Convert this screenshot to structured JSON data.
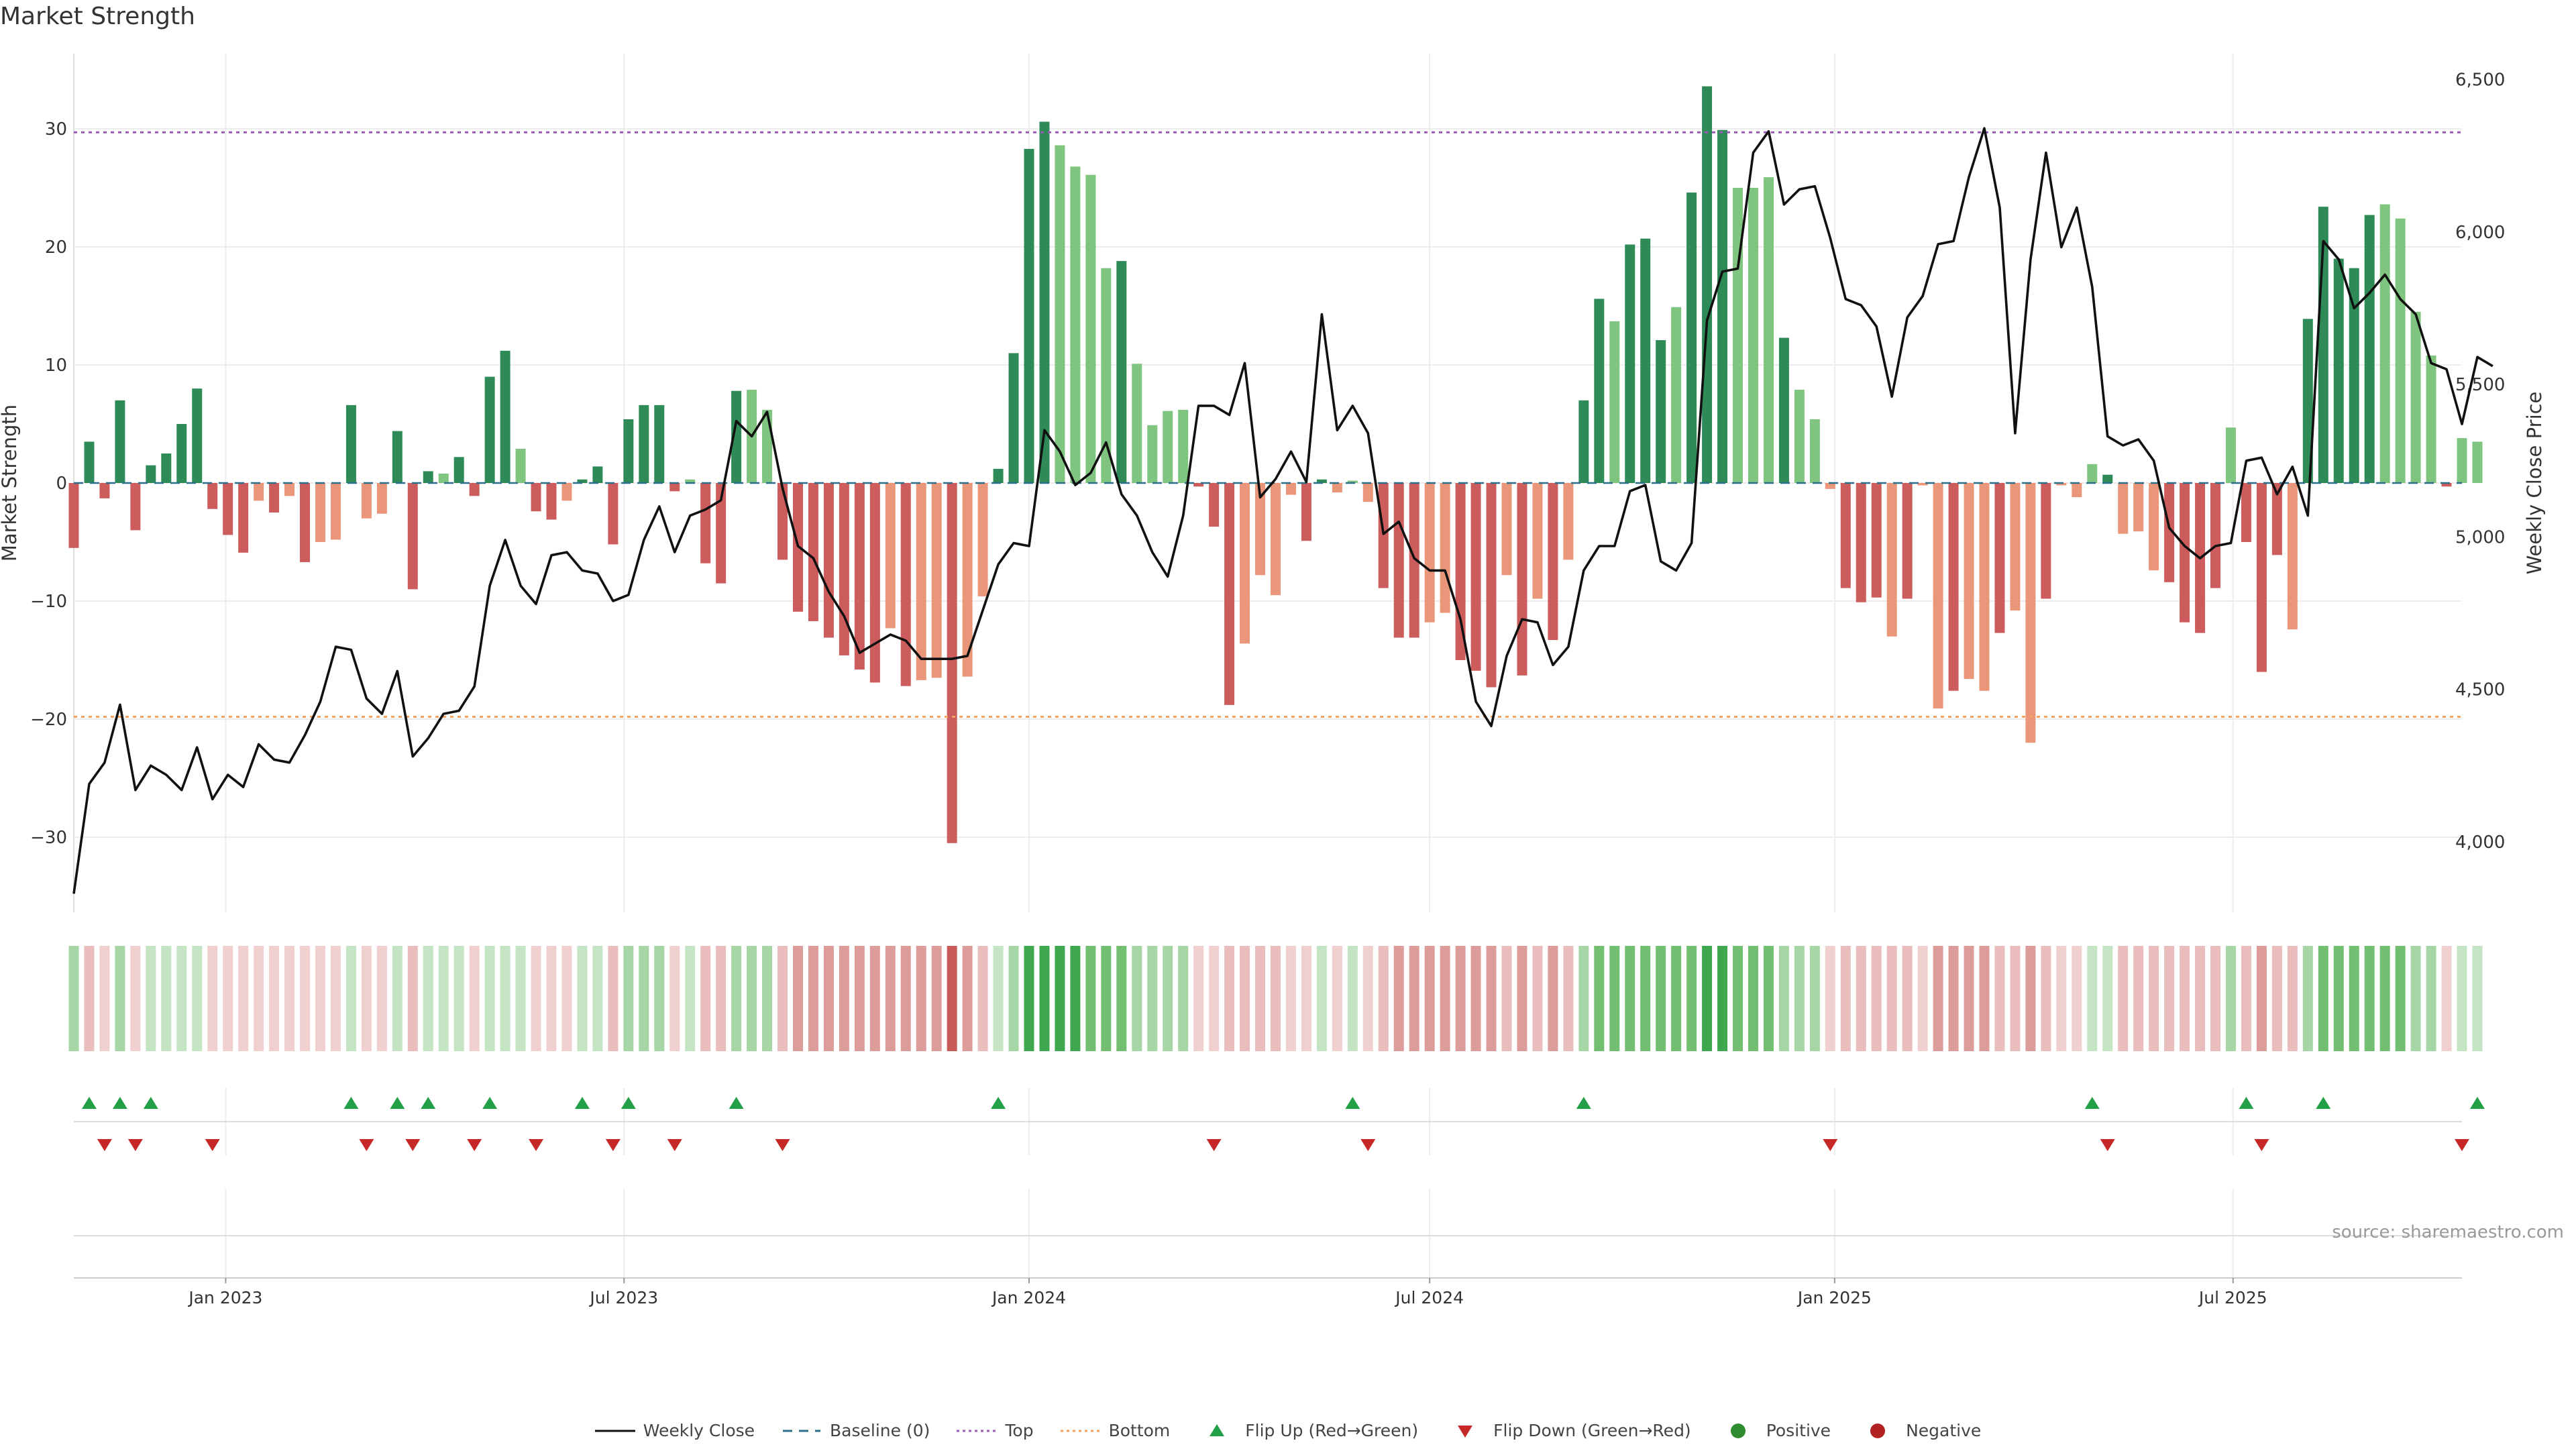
{
  "chart_data": {
    "type": "bar",
    "title": "Market Strength",
    "source": "source: sharemaestro.com",
    "ylabel_left": "Market Strength",
    "ylabel_right": "Weekly Close Price",
    "ylim_left": [
      -36,
      36
    ],
    "ylim_right": [
      3800,
      6600
    ],
    "yticks_left": [
      -30,
      -20,
      -10,
      0,
      10,
      20,
      30
    ],
    "yticks_right": [
      "4,000",
      "4,500",
      "5,000",
      "5,500",
      "6,000",
      "6,500"
    ],
    "yticks_right_values": [
      4000,
      4500,
      5000,
      5500,
      6000,
      6500
    ],
    "top_line": 29.7,
    "bottom_line": -19.8,
    "x_range": [
      "2022-10-24",
      "2025-10-13"
    ],
    "xticks": [
      {
        "date": "2023-01-01",
        "label": "Jan 2023"
      },
      {
        "date": "2023-07-01",
        "label": "Jul 2023"
      },
      {
        "date": "2024-01-01",
        "label": "Jan 2024"
      },
      {
        "date": "2024-07-01",
        "label": "Jul 2024"
      },
      {
        "date": "2025-01-01",
        "label": "Jan 2025"
      },
      {
        "date": "2025-07-01",
        "label": "Jul 2025"
      }
    ],
    "first_week": "2022-10-24",
    "strength": [
      -5.5,
      3.5,
      -1.3,
      7,
      -4,
      1.5,
      2.5,
      5,
      8,
      -2.2,
      -4.4,
      -5.9,
      -1.5,
      -2.5,
      -1.1,
      -6.7,
      -5,
      -4.8,
      6.6,
      -3,
      -2.6,
      4.4,
      -9,
      1,
      0.8,
      2.2,
      -1.1,
      9,
      11.2,
      2.9,
      -2.4,
      -3.1,
      -1.5,
      0.3,
      1.4,
      -5.2,
      5.4,
      6.6,
      6.6,
      -0.7,
      0.3,
      -6.8,
      -8.5,
      7.8,
      7.9,
      6.2,
      -6.5,
      -10.9,
      -11.7,
      -13.1,
      -14.6,
      -15.8,
      -16.9,
      -12.3,
      -17.2,
      -16.7,
      -16.5,
      -30.5,
      -16.4,
      -9.6,
      1.2,
      11,
      28.3,
      30.6,
      28.6,
      26.8,
      26.1,
      18.2,
      18.8,
      10.1,
      4.9,
      6.1,
      6.2,
      -0.3,
      -3.7,
      -18.8,
      -13.6,
      -7.8,
      -9.5,
      -1,
      -4.9,
      0.3,
      -0.8,
      0.2,
      -1.6,
      -8.9,
      -13.1,
      -13.1,
      -11.8,
      -11,
      -15,
      -15.9,
      -17.3,
      -7.8,
      -16.3,
      -9.8,
      -13.3,
      -6.5,
      7,
      15.6,
      13.7,
      20.2,
      20.7,
      12.1,
      14.9,
      24.6,
      33.6,
      29.9,
      25,
      25,
      25.9,
      12.3,
      7.9,
      5.4,
      -0.5,
      -8.9,
      -10.1,
      -9.7,
      -13,
      -9.8,
      -0.2,
      -19.1,
      -17.6,
      -16.6,
      -17.6,
      -12.7,
      -10.8,
      -22,
      -9.8,
      -0.2,
      -1.2,
      1.6,
      0.7,
      -4.3,
      -4.1,
      -7.4,
      -8.4,
      -11.8,
      -12.7,
      -8.9,
      4.7,
      -5,
      -16,
      -6.1,
      -12.4,
      13.9,
      23.4,
      19,
      18.2,
      22.7,
      23.6,
      22.4,
      14.5,
      10.8,
      -0.3,
      3.8,
      3.5
    ],
    "strength_light": [
      false,
      false,
      false,
      false,
      false,
      false,
      false,
      false,
      false,
      false,
      false,
      false,
      true,
      false,
      true,
      false,
      true,
      true,
      false,
      true,
      true,
      false,
      false,
      false,
      true,
      false,
      false,
      false,
      false,
      true,
      false,
      false,
      true,
      false,
      false,
      false,
      false,
      false,
      false,
      false,
      true,
      false,
      false,
      false,
      true,
      true,
      false,
      false,
      false,
      false,
      false,
      false,
      false,
      true,
      false,
      true,
      true,
      false,
      true,
      true,
      false,
      false,
      false,
      false,
      true,
      true,
      true,
      true,
      false,
      true,
      true,
      true,
      true,
      false,
      false,
      false,
      true,
      true,
      true,
      true,
      false,
      false,
      true,
      true,
      true,
      false,
      false,
      false,
      true,
      true,
      false,
      false,
      false,
      true,
      false,
      true,
      false,
      true,
      false,
      false,
      true,
      false,
      false,
      false,
      true,
      false,
      false,
      false,
      true,
      true,
      true,
      false,
      true,
      true,
      true,
      false,
      false,
      false,
      true,
      false,
      true,
      true,
      false,
      true,
      true,
      false,
      true,
      true,
      false,
      true,
      true,
      true,
      false,
      true,
      true,
      true,
      false,
      false,
      false,
      false,
      true,
      false,
      false,
      false,
      true,
      false,
      false,
      false,
      false,
      false,
      true,
      true,
      true,
      true,
      false,
      true,
      true,
      false,
      false,
      false,
      true
    ],
    "weekly_close": [
      3830,
      4190,
      4260,
      4450,
      4170,
      4250,
      4220,
      4170,
      4310,
      4140,
      4220,
      4180,
      4320,
      4270,
      4260,
      4350,
      4460,
      4640,
      4630,
      4470,
      4420,
      4560,
      4280,
      4340,
      4420,
      4430,
      4510,
      4840,
      4990,
      4840,
      4780,
      4940,
      4950,
      4890,
      4880,
      4790,
      4810,
      4990,
      5100,
      4950,
      5070,
      5090,
      5120,
      5380,
      5330,
      5410,
      5160,
      4970,
      4930,
      4820,
      4740,
      4620,
      4650,
      4680,
      4660,
      4600,
      4600,
      4600,
      4610,
      4760,
      4910,
      4980,
      4970,
      5350,
      5280,
      5170,
      5210,
      5310,
      5140,
      5070,
      4950,
      4870,
      5070,
      5430,
      5430,
      5400,
      5570,
      5130,
      5190,
      5280,
      5180,
      5730,
      5350,
      5430,
      5340,
      5010,
      5050,
      4930,
      4890,
      4890,
      4730,
      4460,
      4380,
      4610,
      4730,
      4720,
      4580,
      4640,
      4890,
      4970,
      4970,
      5150,
      5170,
      4920,
      4890,
      4980,
      5710,
      5870,
      5880,
      6260,
      6330,
      6090,
      6140,
      6150,
      5980,
      5780,
      5760,
      5690,
      5460,
      5720,
      5790,
      5960,
      5970,
      6180,
      6340,
      6080,
      5340,
      5910,
      6260,
      5950,
      6080,
      5820,
      5330,
      5300,
      5320,
      5250,
      5030,
      4970,
      4930,
      4970,
      4980,
      5250,
      5260,
      5140,
      5230,
      5070,
      5970,
      5910,
      5750,
      5800,
      5860,
      5780,
      5730,
      5570,
      5550,
      5370,
      5590,
      5560
    ],
    "heatstrip": [
      2,
      -2,
      -1,
      2,
      -1,
      1,
      1,
      1,
      1,
      -1,
      -1,
      -1,
      -1,
      -1,
      -1,
      -1,
      -1,
      -1,
      1,
      -1,
      -1,
      1,
      -2,
      1,
      1,
      1,
      -1,
      1,
      1,
      1,
      -1,
      -1,
      -1,
      1,
      1,
      -2,
      2,
      2,
      2,
      -1,
      1,
      -2,
      -2,
      2,
      2,
      2,
      -2,
      -3,
      -3,
      -3,
      -3,
      -3,
      -3,
      -3,
      -3,
      -3,
      -3,
      -4,
      -3,
      -2,
      1,
      2,
      4,
      4,
      4,
      4,
      3,
      3,
      3,
      2,
      2,
      2,
      2,
      -1,
      -1,
      -2,
      -2,
      -2,
      -2,
      -1,
      -1,
      1,
      -1,
      1,
      -1,
      -2,
      -3,
      -3,
      -3,
      -3,
      -3,
      -3,
      -3,
      -2,
      -3,
      -2,
      -3,
      -2,
      2,
      3,
      3,
      3,
      3,
      3,
      3,
      3,
      4,
      4,
      3,
      3,
      3,
      2,
      2,
      2,
      -1,
      -2,
      -2,
      -2,
      -2,
      -2,
      -1,
      -3,
      -3,
      -3,
      -3,
      -2,
      -2,
      -3,
      -2,
      -1,
      -1,
      1,
      1,
      -2,
      -2,
      -2,
      -2,
      -2,
      -2,
      -2,
      2,
      -2,
      -3,
      -2,
      -2,
      2,
      3,
      3,
      3,
      3,
      3,
      3,
      2,
      2,
      -1,
      1,
      1
    ],
    "flip_up_weeks": [
      1,
      3,
      5,
      18,
      21,
      23,
      27,
      33,
      36,
      43,
      60,
      83,
      98,
      131,
      141,
      146,
      156
    ],
    "flip_down_weeks": [
      2,
      4,
      9,
      19,
      22,
      26,
      30,
      35,
      39,
      46,
      74,
      84,
      114,
      132,
      142,
      155
    ],
    "legend": [
      {
        "label": "Weekly Close",
        "symbol": "solid-line",
        "color": "#111111"
      },
      {
        "label": "Baseline (0)",
        "symbol": "dashed-line",
        "color": "#2b6f8a"
      },
      {
        "label": "Top",
        "symbol": "dotted-line",
        "color": "#9b59b6"
      },
      {
        "label": "Bottom",
        "symbol": "dotted-line",
        "color": "#f0a060"
      },
      {
        "label": "Flip Up (Red→Green)",
        "symbol": "triangle-up",
        "color": "#23a047"
      },
      {
        "label": "Flip Down (Green→Red)",
        "symbol": "triangle-down",
        "color": "#c62828"
      },
      {
        "label": "Positive",
        "symbol": "circle",
        "color": "#2e8b2e"
      },
      {
        "label": "Negative",
        "symbol": "circle",
        "color": "#b22222"
      }
    ],
    "colors": {
      "pos_dark": "#2e8b57",
      "pos_light": "#7fc47f",
      "neg_dark": "#cd5c5c",
      "neg_light": "#e9967a",
      "top_line": "#9b59b6",
      "bottom_line": "#f4a460",
      "baseline": "#2b6f8a"
    }
  }
}
